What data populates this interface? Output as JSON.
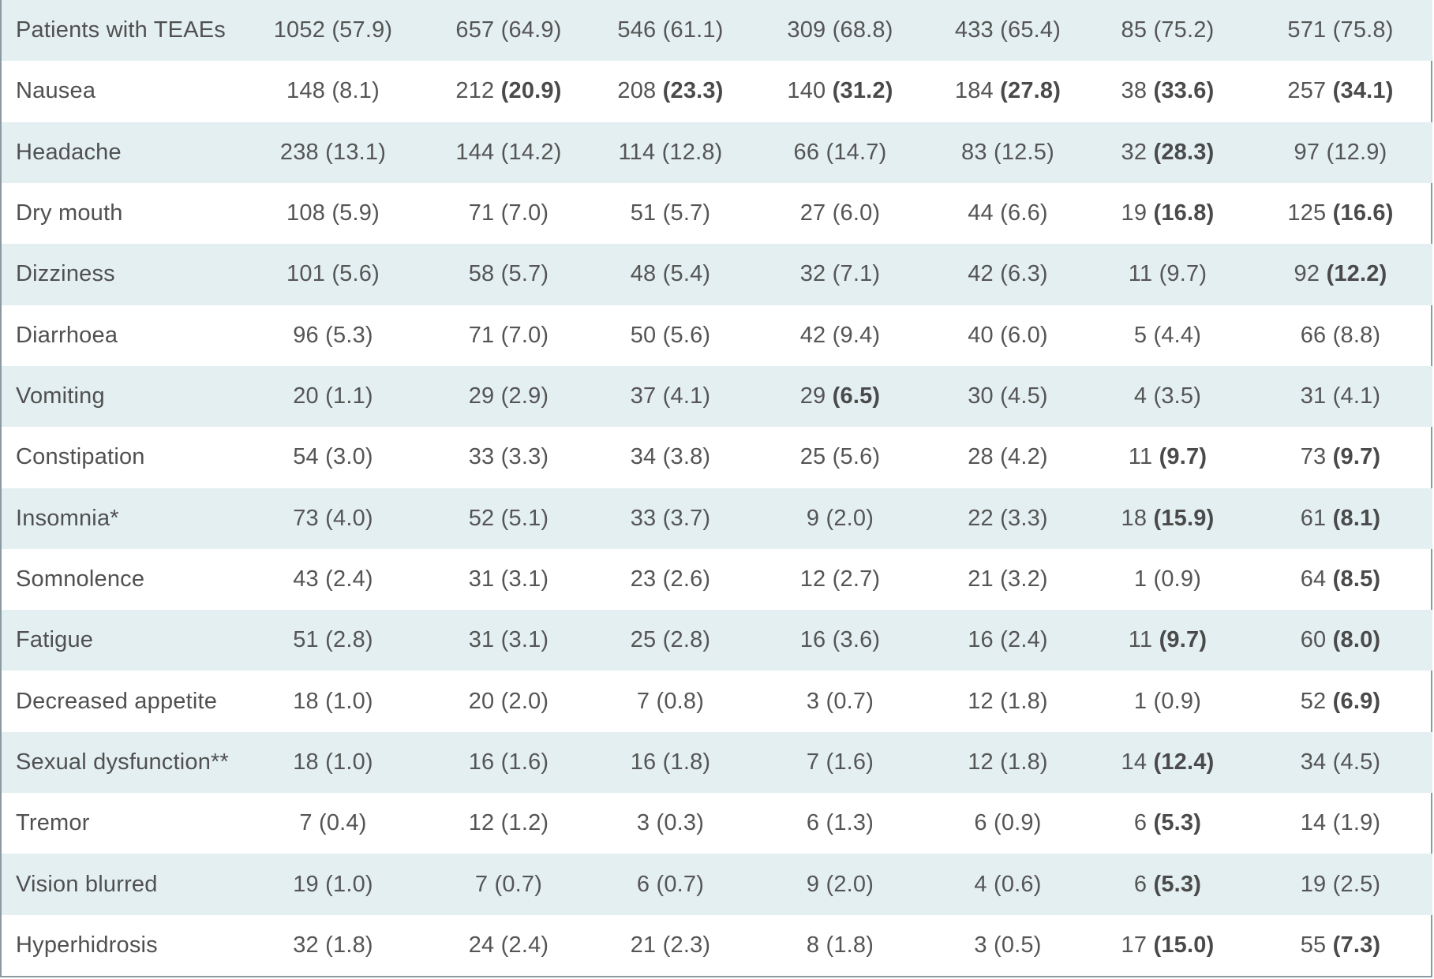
{
  "table": {
    "rows": [
      {
        "label": "Patients with TEAEs",
        "cells": [
          [
            "1052",
            "(57.9)",
            false
          ],
          [
            "657",
            "(64.9)",
            false
          ],
          [
            "546",
            "(61.1)",
            false
          ],
          [
            "309",
            "(68.8)",
            false
          ],
          [
            "433",
            "(65.4)",
            false
          ],
          [
            "85",
            "(75.2)",
            false
          ],
          [
            "571",
            "(75.8)",
            false
          ]
        ]
      },
      {
        "label": "Nausea",
        "cells": [
          [
            "148",
            "(8.1)",
            false
          ],
          [
            "212",
            "(20.9)",
            true
          ],
          [
            "208",
            "(23.3)",
            true
          ],
          [
            "140",
            "(31.2)",
            true
          ],
          [
            "184",
            "(27.8)",
            true
          ],
          [
            "38",
            "(33.6)",
            true
          ],
          [
            "257",
            "(34.1)",
            true
          ]
        ]
      },
      {
        "label": "Headache",
        "cells": [
          [
            "238",
            "(13.1)",
            false
          ],
          [
            "144",
            "(14.2)",
            false
          ],
          [
            "114",
            "(12.8)",
            false
          ],
          [
            "66",
            "(14.7)",
            false
          ],
          [
            "83",
            "(12.5)",
            false
          ],
          [
            "32",
            "(28.3)",
            true
          ],
          [
            "97",
            "(12.9)",
            false
          ]
        ]
      },
      {
        "label": "Dry mouth",
        "cells": [
          [
            "108",
            "(5.9)",
            false
          ],
          [
            "71",
            "(7.0)",
            false
          ],
          [
            "51",
            "(5.7)",
            false
          ],
          [
            "27",
            "(6.0)",
            false
          ],
          [
            "44",
            "(6.6)",
            false
          ],
          [
            "19",
            "(16.8)",
            true
          ],
          [
            "125",
            "(16.6)",
            true
          ]
        ]
      },
      {
        "label": "Dizziness",
        "cells": [
          [
            "101",
            "(5.6)",
            false
          ],
          [
            "58",
            "(5.7)",
            false
          ],
          [
            "48",
            "(5.4)",
            false
          ],
          [
            "32",
            "(7.1)",
            false
          ],
          [
            "42",
            "(6.3)",
            false
          ],
          [
            "11",
            "(9.7)",
            false
          ],
          [
            "92",
            "(12.2)",
            true
          ]
        ]
      },
      {
        "label": "Diarrhoea",
        "cells": [
          [
            "96",
            "(5.3)",
            false
          ],
          [
            "71",
            "(7.0)",
            false
          ],
          [
            "50",
            "(5.6)",
            false
          ],
          [
            "42",
            "(9.4)",
            false
          ],
          [
            "40",
            "(6.0)",
            false
          ],
          [
            "5",
            "(4.4)",
            false
          ],
          [
            "66",
            "(8.8)",
            false
          ]
        ]
      },
      {
        "label": "Vomiting",
        "cells": [
          [
            "20",
            "(1.1)",
            false
          ],
          [
            "29",
            "(2.9)",
            false
          ],
          [
            "37",
            "(4.1)",
            false
          ],
          [
            "29",
            "(6.5)",
            true
          ],
          [
            "30",
            "(4.5)",
            false
          ],
          [
            "4",
            "(3.5)",
            false
          ],
          [
            "31",
            "(4.1)",
            false
          ]
        ]
      },
      {
        "label": "Constipation",
        "cells": [
          [
            "54",
            "(3.0)",
            false
          ],
          [
            "33",
            "(3.3)",
            false
          ],
          [
            "34",
            "(3.8)",
            false
          ],
          [
            "25",
            "(5.6)",
            false
          ],
          [
            "28",
            "(4.2)",
            false
          ],
          [
            "11",
            "(9.7)",
            true
          ],
          [
            "73",
            "(9.7)",
            true
          ]
        ]
      },
      {
        "label": "Insomnia*",
        "cells": [
          [
            "73",
            "(4.0)",
            false
          ],
          [
            "52",
            "(5.1)",
            false
          ],
          [
            "33",
            "(3.7)",
            false
          ],
          [
            "9",
            "(2.0)",
            false
          ],
          [
            "22",
            "(3.3)",
            false
          ],
          [
            "18",
            "(15.9)",
            true
          ],
          [
            "61",
            "(8.1)",
            true
          ]
        ]
      },
      {
        "label": "Somnolence",
        "cells": [
          [
            "43",
            "(2.4)",
            false
          ],
          [
            "31",
            "(3.1)",
            false
          ],
          [
            "23",
            "(2.6)",
            false
          ],
          [
            "12",
            "(2.7)",
            false
          ],
          [
            "21",
            "(3.2)",
            false
          ],
          [
            "1",
            "(0.9)",
            false
          ],
          [
            "64",
            "(8.5)",
            true
          ]
        ]
      },
      {
        "label": "Fatigue",
        "cells": [
          [
            "51",
            "(2.8)",
            false
          ],
          [
            "31",
            "(3.1)",
            false
          ],
          [
            "25",
            "(2.8)",
            false
          ],
          [
            "16",
            "(3.6)",
            false
          ],
          [
            "16",
            "(2.4)",
            false
          ],
          [
            "11",
            "(9.7)",
            true
          ],
          [
            "60",
            "(8.0)",
            true
          ]
        ]
      },
      {
        "label": "Decreased appetite",
        "cells": [
          [
            "18",
            "(1.0)",
            false
          ],
          [
            "20",
            "(2.0)",
            false
          ],
          [
            "7",
            "(0.8)",
            false
          ],
          [
            "3",
            "(0.7)",
            false
          ],
          [
            "12",
            "(1.8)",
            false
          ],
          [
            "1",
            "(0.9)",
            false
          ],
          [
            "52",
            "(6.9)",
            true
          ]
        ]
      },
      {
        "label": "Sexual dysfunction**",
        "cells": [
          [
            "18",
            "(1.0)",
            false
          ],
          [
            "16",
            "(1.6)",
            false
          ],
          [
            "16",
            "(1.8)",
            false
          ],
          [
            "7",
            "(1.6)",
            false
          ],
          [
            "12",
            "(1.8)",
            false
          ],
          [
            "14",
            "(12.4)",
            true
          ],
          [
            "34",
            "(4.5)",
            false
          ]
        ]
      },
      {
        "label": "Tremor",
        "cells": [
          [
            "7",
            "(0.4)",
            false
          ],
          [
            "12",
            "(1.2)",
            false
          ],
          [
            "3",
            "(0.3)",
            false
          ],
          [
            "6",
            "(1.3)",
            false
          ],
          [
            "6",
            "(0.9)",
            false
          ],
          [
            "6",
            "(5.3)",
            true
          ],
          [
            "14",
            "(1.9)",
            false
          ]
        ]
      },
      {
        "label": "Vision blurred",
        "cells": [
          [
            "19",
            "(1.0)",
            false
          ],
          [
            "7",
            "(0.7)",
            false
          ],
          [
            "6",
            "(0.7)",
            false
          ],
          [
            "9",
            "(2.0)",
            false
          ],
          [
            "4",
            "(0.6)",
            false
          ],
          [
            "6",
            "(5.3)",
            true
          ],
          [
            "19",
            "(2.5)",
            false
          ]
        ]
      },
      {
        "label": "Hyperhidrosis",
        "cells": [
          [
            "32",
            "(1.8)",
            false
          ],
          [
            "24",
            "(2.4)",
            false
          ],
          [
            "21",
            "(2.3)",
            false
          ],
          [
            "8",
            "(1.8)",
            false
          ],
          [
            "3",
            "(0.5)",
            false
          ],
          [
            "17",
            "(15.0)",
            true
          ],
          [
            "55",
            "(7.3)",
            true
          ]
        ]
      }
    ]
  },
  "colors": {
    "shaded_row": "#e4eff2",
    "border": "#8a9aa0",
    "text": "#555555"
  }
}
